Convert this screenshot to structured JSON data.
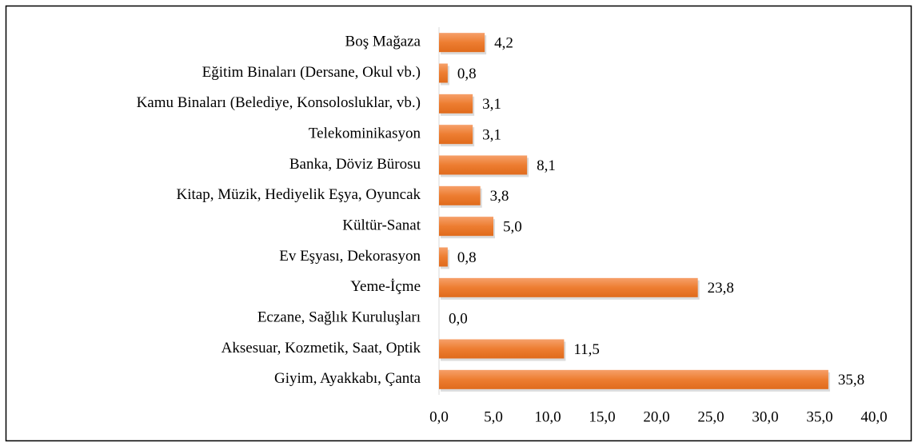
{
  "chart_data": {
    "type": "bar",
    "orientation": "horizontal",
    "categories": [
      "Boş Mağaza",
      "Eğitim Binaları (Dersane, Okul vb.)",
      "Kamu Binaları (Belediye, Konsolosluklar, vb.)",
      "Telekominikasyon",
      "Banka, Döviz Bürosu",
      "Kitap, Müzik, Hediyelik Eşya, Oyuncak",
      "Kültür-Sanat",
      "Ev Eşyası, Dekorasyon",
      "Yeme-İçme",
      "Eczane, Sağlık Kuruluşları",
      "Aksesuar, Kozmetik, Saat, Optik",
      "Giyim, Ayakkabı, Çanta"
    ],
    "values": [
      4.2,
      0.8,
      3.1,
      3.1,
      8.1,
      3.8,
      5.0,
      0.8,
      23.8,
      0.0,
      11.5,
      35.8
    ],
    "value_labels": [
      "4,2",
      "0,8",
      "3,1",
      "3,1",
      "8,1",
      "3,8",
      "5,0",
      "0,8",
      "23,8",
      "0,0",
      "11,5",
      "35,8"
    ],
    "color": "#ed7d31",
    "xlim": [
      0,
      40
    ],
    "xticks": [
      {
        "value": 0,
        "label": "0,0"
      },
      {
        "value": 5,
        "label": "5,0"
      },
      {
        "value": 10,
        "label": "10,0"
      },
      {
        "value": 15,
        "label": "15,0"
      },
      {
        "value": 20,
        "label": "20,0"
      },
      {
        "value": 25,
        "label": "25,0"
      },
      {
        "value": 30,
        "label": "30,0"
      },
      {
        "value": 35,
        "label": "35,0"
      },
      {
        "value": 40,
        "label": "40,0"
      }
    ],
    "grid": false
  }
}
